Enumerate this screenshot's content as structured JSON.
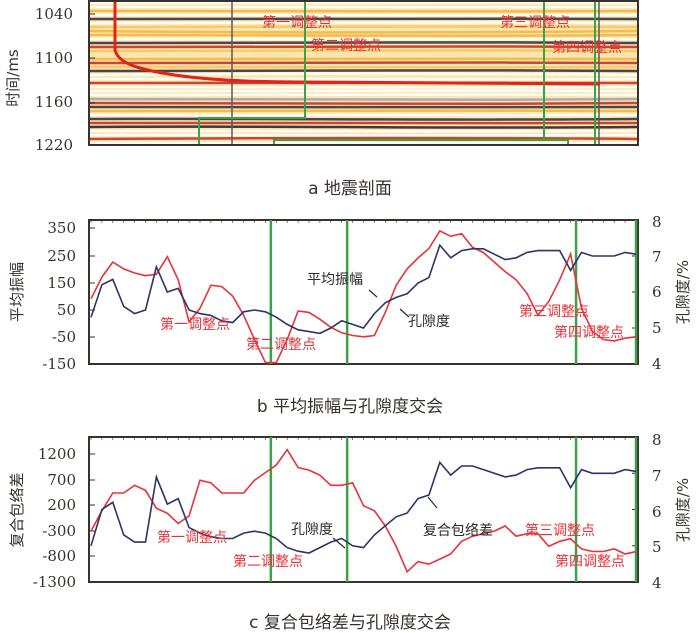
{
  "captions": {
    "a": "a  地震剖面",
    "b": "b  平均振幅与孔隙度交会",
    "c": "c  复合包络差与孔隙度交会"
  },
  "colors": {
    "red": "#e8323a",
    "navy": "#2b3566",
    "green": "#3aa24a",
    "frame": "#3a302c",
    "seis_orange": "#f2b43a",
    "seis_red": "#c8261c",
    "seis_dark": "#1a1a2a",
    "seis_grey": "#9aa0b4"
  },
  "chart_data": [
    {
      "type": "heatmap",
      "title": "a  地震剖面",
      "ylabel": "时间/ms",
      "yticks": [
        "1040",
        "1100",
        "1160",
        "1220"
      ],
      "ylim": [
        1220,
        1030
      ],
      "annotations": [
        "第一调整点",
        "第二调整点",
        "第三调整点",
        "第四调整点"
      ],
      "notes": "Seismic section with red curved horizon, green polygon boundaries at adjustment points"
    },
    {
      "type": "line",
      "title": "b  平均振幅与孔隙度交会",
      "ylabel": "平均振幅",
      "y2label": "孔隙度/%",
      "yticks": [
        "350",
        "250",
        "150",
        "50",
        "-50",
        "-150"
      ],
      "ylim": [
        -150,
        380
      ],
      "y2ticks": [
        "8",
        "7",
        "6",
        "5",
        "4"
      ],
      "y2lim": [
        4,
        8
      ],
      "x": [
        0,
        1,
        2,
        3,
        4,
        5,
        6,
        7,
        8,
        9,
        10,
        11,
        12,
        13,
        14,
        15,
        16,
        17,
        18,
        19,
        20,
        21,
        22,
        23,
        24,
        25,
        26,
        27,
        28,
        29,
        30,
        31,
        32,
        33,
        34,
        35,
        36,
        37,
        38,
        39,
        40,
        41,
        42,
        43,
        44,
        45,
        46,
        47,
        48,
        49,
        50
      ],
      "series": [
        {
          "name": "平均振幅",
          "color": "#e8323a",
          "values": [
            90,
            170,
            225,
            200,
            185,
            175,
            180,
            245,
            160,
            5,
            55,
            140,
            135,
            100,
            30,
            -60,
            -145,
            -145,
            -60,
            45,
            40,
            15,
            -15,
            -35,
            -45,
            -50,
            -45,
            40,
            140,
            200,
            240,
            275,
            340,
            320,
            330,
            280,
            260,
            225,
            190,
            160,
            110,
            30,
            80,
            160,
            255,
            55,
            -30,
            -60,
            -65,
            -55,
            -50
          ]
        },
        {
          "name": "孔隙度",
          "color": "#2b3566",
          "values": [
            5.3,
            6.2,
            6.35,
            5.6,
            5.4,
            5.5,
            6.7,
            6.0,
            6.1,
            5.5,
            5.4,
            5.35,
            5.2,
            5.15,
            5.45,
            5.5,
            5.45,
            5.3,
            5.1,
            4.95,
            4.9,
            4.85,
            5.0,
            5.2,
            5.1,
            5.0,
            5.4,
            5.7,
            5.85,
            5.95,
            6.25,
            6.4,
            7.3,
            6.95,
            7.15,
            7.2,
            7.2,
            7.05,
            6.9,
            6.95,
            7.1,
            7.15,
            7.15,
            7.15,
            6.6,
            7.1,
            7.0,
            7.0,
            7.0,
            7.1,
            7.05
          ]
        }
      ],
      "annotations": [
        "第一调整点",
        "第二调整点",
        "第三调整点",
        "第四调整点",
        "平均振幅",
        "孔隙度"
      ],
      "vertical_lines_x_index": [
        16.5,
        23.5,
        44.5,
        50
      ]
    },
    {
      "type": "line",
      "title": "c  复合包络差与孔隙度交会",
      "ylabel": "复合包络差",
      "y2label": "孔隙度/%",
      "yticks": [
        "1200",
        "700",
        "200",
        "-300",
        "-800",
        "-1300"
      ],
      "ylim": [
        -1300,
        1500
      ],
      "y2ticks": [
        "8",
        "7",
        "6",
        "5",
        "4"
      ],
      "y2lim": [
        4,
        8
      ],
      "x": [
        0,
        1,
        2,
        3,
        4,
        5,
        6,
        7,
        8,
        9,
        10,
        11,
        12,
        13,
        14,
        15,
        16,
        17,
        18,
        19,
        20,
        21,
        22,
        23,
        24,
        25,
        26,
        27,
        28,
        29,
        30,
        31,
        32,
        33,
        34,
        35,
        36,
        37,
        38,
        39,
        40,
        41,
        42,
        43,
        44,
        45,
        46,
        47,
        48,
        49,
        50
      ],
      "series": [
        {
          "name": "复合包络差",
          "color": "#e8323a",
          "values": [
            -300,
            100,
            450,
            450,
            600,
            500,
            150,
            50,
            -150,
            0,
            700,
            650,
            450,
            450,
            450,
            700,
            850,
            1000,
            1300,
            950,
            900,
            800,
            600,
            600,
            650,
            200,
            100,
            -200,
            -600,
            -1100,
            -900,
            -950,
            -850,
            -750,
            -500,
            -400,
            -350,
            -300,
            -200,
            -400,
            -350,
            -350,
            -600,
            -500,
            -450,
            -650,
            -700,
            -700,
            -650,
            -750,
            -700
          ]
        },
        {
          "name": "孔隙度",
          "color": "#2b3566",
          "values": [
            5.0,
            6.0,
            6.2,
            5.3,
            5.1,
            5.1,
            6.9,
            6.15,
            6.3,
            5.5,
            5.35,
            5.25,
            5.2,
            5.2,
            5.35,
            5.4,
            5.35,
            5.2,
            4.95,
            4.85,
            4.8,
            4.95,
            5.1,
            5.2,
            5.0,
            4.95,
            5.3,
            5.55,
            5.8,
            5.9,
            6.3,
            6.4,
            7.3,
            6.95,
            7.2,
            7.2,
            7.1,
            7.0,
            6.9,
            6.95,
            7.1,
            7.15,
            7.15,
            7.15,
            6.6,
            7.1,
            7.0,
            7.0,
            7.0,
            7.1,
            7.05
          ]
        }
      ],
      "annotations": [
        "第一调整点",
        "第二调整点",
        "第三调整点",
        "第四调整点",
        "孔隙度",
        "复合包络差"
      ],
      "vertical_lines_x_index": [
        16.5,
        23.5,
        44.5,
        50
      ]
    }
  ],
  "panel_a": {
    "ylabel": "时间/ms",
    "yticks": [
      "1040",
      "1100",
      "1160",
      "1220"
    ],
    "labels": [
      "第一调整点",
      "第二调整点",
      "第三调整点",
      "第四调整点"
    ]
  },
  "panel_b": {
    "ylabel": "平均振幅",
    "y2label": "孔隙度/%",
    "yticks": [
      "350",
      "250",
      "150",
      "50",
      "-50",
      "-150"
    ],
    "y2ticks": [
      "8",
      "7",
      "6",
      "5",
      "4"
    ],
    "labels": [
      "第一调整点",
      "第二调整点",
      "第三调整点",
      "第四调整点"
    ],
    "series_labels": [
      "平均振幅",
      "孔隙度"
    ]
  },
  "panel_c": {
    "ylabel": "复合包络差",
    "y2label": "孔隙度/%",
    "yticks": [
      "1200",
      "700",
      "200",
      "-300",
      "-800",
      "-1300"
    ],
    "y2ticks": [
      "8",
      "7",
      "6",
      "5",
      "4"
    ],
    "labels": [
      "第一调整点",
      "第二调整点",
      "第三调整点",
      "第四调整点"
    ],
    "series_labels": [
      "孔隙度",
      "复合包络差"
    ]
  }
}
